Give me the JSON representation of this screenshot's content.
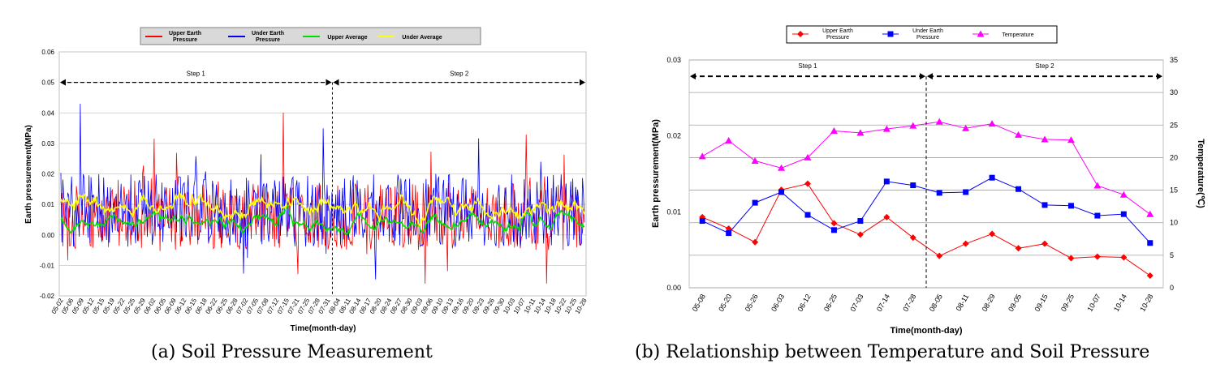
{
  "captions": {
    "a": "(a) Soil Pressure Measurement",
    "b": "(b) Relationship between Temperature and Soil Pressure"
  },
  "chart_data": [
    {
      "type": "line",
      "ylabel": "Earth pressurement(MPa)",
      "xlabel": "Time(month-day)",
      "ylim": [
        -0.02,
        0.06
      ],
      "yticks": [
        "0.06",
        "0.05",
        "0.04",
        "0.03",
        "0.02",
        "0.01",
        "0.00",
        "-0.01",
        "-0.02"
      ],
      "categories": [
        "05-02",
        "05-06",
        "05-09",
        "05-12",
        "05-15",
        "05-19",
        "05-22",
        "05-25",
        "05-29",
        "06-02",
        "06-05",
        "06-09",
        "06-12",
        "06-15",
        "06-18",
        "06-22",
        "06-25",
        "06-28",
        "07-02",
        "07-05",
        "07-08",
        "07-12",
        "07-15",
        "07-21",
        "07-25",
        "07-28",
        "07-31",
        "08-04",
        "08-11",
        "08-14",
        "08-17",
        "08-20",
        "08-24",
        "08-27",
        "08-30",
        "09-03",
        "09-06",
        "09-10",
        "09-13",
        "09-16",
        "09-20",
        "09-23",
        "09-26",
        "09-30",
        "10-03",
        "10-07",
        "10-11",
        "10-14",
        "10-18",
        "10-22",
        "10-25",
        "10-28"
      ],
      "legend_placement": "top",
      "legend": [
        {
          "label": "Upper Earth Pressure",
          "color": "#ff0000"
        },
        {
          "label": "Under Earth Pressure",
          "color": "#0000ff"
        },
        {
          "label": "Upper Average",
          "color": "#00dd00"
        },
        {
          "label": "Under Average",
          "color": "#ffff00"
        }
      ],
      "step_split_category": "08-04",
      "steps": [
        "Step 1",
        "Step 2"
      ],
      "series_style": "dense daily fluctuations: upper earth pressure roughly -0.015 to 0.043, under earth pressure roughly -0.012 to 0.039, both averages roughly 0.00 to 0.015"
    },
    {
      "type": "line",
      "xlabel": "Time(month-day)",
      "ylabel": "Earth pressurement(MPa)",
      "y2label": "Temperature(℃)",
      "ylim": [
        0,
        0.03
      ],
      "y2lim": [
        0,
        35
      ],
      "yticks": [
        "0.03",
        "0.02",
        "0.01",
        "0.00"
      ],
      "y2ticks": [
        "35",
        "30",
        "25",
        "20",
        "15",
        "10",
        "5",
        "0"
      ],
      "categories": [
        "05-08",
        "05-20",
        "05-26",
        "06-03",
        "06-12",
        "06-25",
        "07-03",
        "07-14",
        "07-28",
        "08-05",
        "08-11",
        "08-29",
        "09-05",
        "09-15",
        "09-25",
        "10-07",
        "10-14",
        "10-28"
      ],
      "steps": [
        "Step 1",
        "Step 2"
      ],
      "step_split_index": 8.5,
      "legend_placement": "top",
      "series": [
        {
          "name": "Upper Earth\nPressure",
          "axis": "left",
          "color": "#ff0000",
          "marker": "diamond",
          "values": [
            0.0093,
            0.0078,
            0.006,
            0.0129,
            0.0137,
            0.0085,
            0.007,
            0.0093,
            0.0066,
            0.0042,
            0.0058,
            0.0071,
            0.0052,
            0.0058,
            0.0039,
            0.0041,
            0.004,
            0.0016
          ]
        },
        {
          "name": "Under Earth\nPressure",
          "axis": "left",
          "color": "#0000ff",
          "marker": "square",
          "values": [
            0.0088,
            0.0072,
            0.0112,
            0.0126,
            0.0096,
            0.0076,
            0.0088,
            0.014,
            0.0135,
            0.0125,
            0.0126,
            0.0145,
            0.013,
            0.0109,
            0.0108,
            0.0095,
            0.0097,
            0.0059
          ]
        },
        {
          "name": "Temperature",
          "axis": "right",
          "color": "#ff00ff",
          "marker": "triangle",
          "values": [
            20.2,
            22.6,
            19.5,
            18.4,
            20.0,
            24.1,
            23.8,
            24.4,
            24.9,
            25.5,
            24.5,
            25.2,
            23.5,
            22.8,
            22.7,
            15.7,
            14.3,
            11.3
          ]
        }
      ]
    }
  ]
}
